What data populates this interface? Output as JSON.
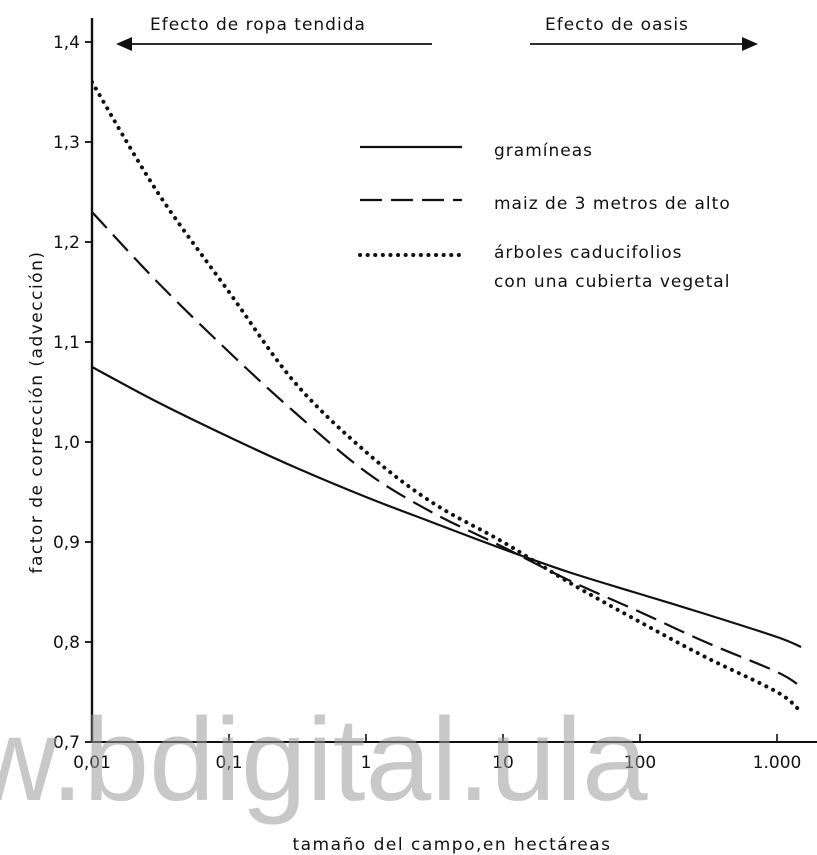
{
  "chart_data": {
    "type": "line",
    "xscale": "log",
    "x_tick_values": [
      0.01,
      0.1,
      1,
      10,
      100,
      1000
    ],
    "x_tick_labels": [
      "0,01",
      "0,1",
      "1",
      "10",
      "100",
      "1.000"
    ],
    "xlim": [
      0.01,
      1500
    ],
    "ylim": [
      0.7,
      1.4
    ],
    "y_tick_values": [
      0.7,
      0.8,
      0.9,
      1.0,
      1.1,
      1.2,
      1.3,
      1.4
    ],
    "y_tick_labels": [
      "0,7",
      "0,8",
      "0,9",
      "1,0",
      "1,1",
      "1,2",
      "1,3",
      "1,4"
    ],
    "xlabel": "tamaño del campo,en hectáreas",
    "ylabel": "factor de corrección (advección)",
    "grid": false,
    "legend_position": "top-right",
    "header_left": "Efecto de ropa tendida",
    "header_right": "Efecto de oasis",
    "series": [
      {
        "name": "gramíneas",
        "style": "solid",
        "x": [
          0.01,
          0.03,
          0.1,
          0.3,
          1,
          3,
          10,
          30,
          100,
          300,
          1000,
          1500
        ],
        "y": [
          1.075,
          1.04,
          1.005,
          0.975,
          0.945,
          0.92,
          0.893,
          0.87,
          0.848,
          0.828,
          0.805,
          0.795
        ]
      },
      {
        "name": "maiz de 3 metros de alto",
        "style": "dashed",
        "x": [
          0.01,
          0.03,
          0.1,
          0.3,
          1,
          3,
          10,
          30,
          100,
          300,
          1000,
          1500
        ],
        "y": [
          1.23,
          1.16,
          1.09,
          1.03,
          0.97,
          0.93,
          0.895,
          0.862,
          0.83,
          0.8,
          0.77,
          0.755
        ]
      },
      {
        "name": "árboles caducifolios con una cubierta vegetal",
        "style": "dotted",
        "x": [
          0.01,
          0.03,
          0.1,
          0.3,
          1,
          3,
          10,
          30,
          100,
          300,
          1000,
          1500
        ],
        "y": [
          1.36,
          1.25,
          1.15,
          1.06,
          0.99,
          0.94,
          0.9,
          0.86,
          0.82,
          0.785,
          0.75,
          0.73
        ]
      }
    ]
  },
  "legend": {
    "entries": [
      {
        "style": "solid",
        "lines": [
          "gramíneas"
        ]
      },
      {
        "style": "dashed",
        "lines": [
          "maiz de 3 metros de alto"
        ]
      },
      {
        "style": "dotted",
        "lines": [
          "árboles caducifolios",
          "con una cubierta vegetal"
        ]
      }
    ]
  },
  "watermark": "w.bdigital.ula",
  "colors": {
    "ink": "#111111",
    "watermark": "#9a9a9a"
  }
}
